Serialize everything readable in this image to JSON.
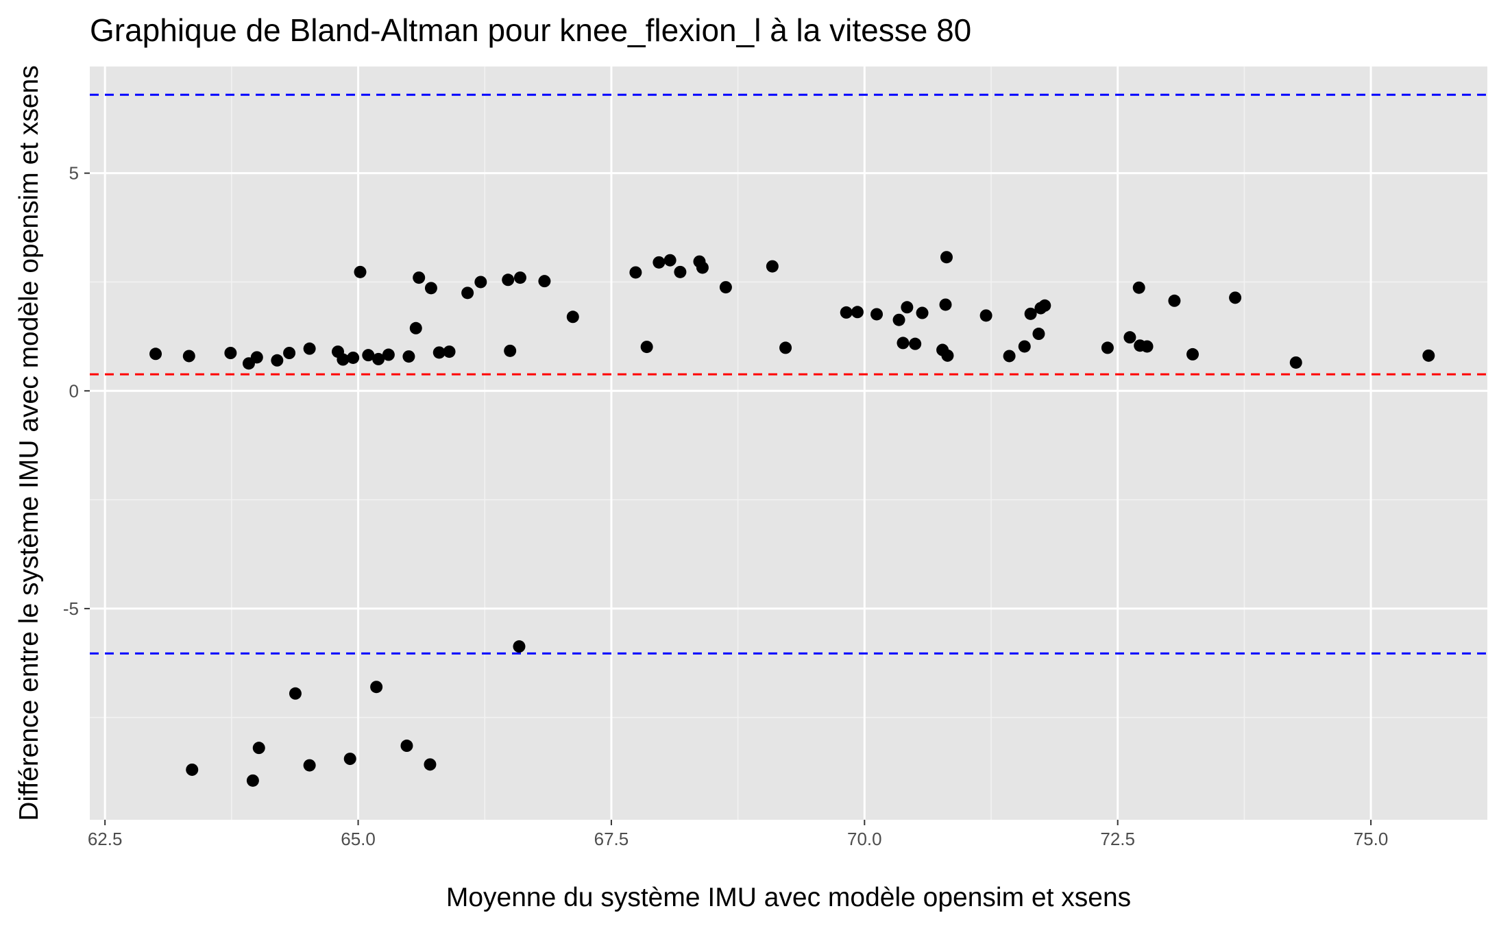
{
  "chart_data": {
    "type": "scatter",
    "title": "Graphique de Bland-Altman pour knee_flexion_l à la vitesse 80",
    "xlabel": "Moyenne du système IMU avec modèle opensim et xsens",
    "ylabel": "Différence entre le système IMU avec modèle opensim et xsens",
    "xlim": [
      62.35,
      76.15
    ],
    "ylim": [
      -9.85,
      7.45
    ],
    "x_ticks": [
      62.5,
      65.0,
      67.5,
      70.0,
      72.5,
      75.0
    ],
    "x_tick_labels": [
      "62.5",
      "65.0",
      "67.5",
      "70.0",
      "72.5",
      "75.0"
    ],
    "y_ticks": [
      -5,
      0,
      5
    ],
    "y_tick_labels": [
      "-5",
      "0",
      "5"
    ],
    "grid": true,
    "reference_lines": [
      {
        "y": 6.8,
        "color": "#0000ff",
        "style": "dashed"
      },
      {
        "y": 0.38,
        "color": "#ff0000",
        "style": "dashed"
      },
      {
        "y": -6.03,
        "color": "#0000ff",
        "style": "dashed"
      }
    ],
    "point_color": "#000000",
    "points": [
      {
        "x": 63.0,
        "y": 0.85
      },
      {
        "x": 63.33,
        "y": 0.8
      },
      {
        "x": 63.74,
        "y": 0.87
      },
      {
        "x": 63.92,
        "y": 0.63
      },
      {
        "x": 64.0,
        "y": 0.77
      },
      {
        "x": 64.2,
        "y": 0.7
      },
      {
        "x": 64.32,
        "y": 0.87
      },
      {
        "x": 64.52,
        "y": 0.97
      },
      {
        "x": 64.8,
        "y": 0.9
      },
      {
        "x": 64.85,
        "y": 0.72
      },
      {
        "x": 64.95,
        "y": 0.76
      },
      {
        "x": 65.02,
        "y": 2.73
      },
      {
        "x": 65.1,
        "y": 0.82
      },
      {
        "x": 65.2,
        "y": 0.73
      },
      {
        "x": 65.3,
        "y": 0.83
      },
      {
        "x": 65.5,
        "y": 0.79
      },
      {
        "x": 65.57,
        "y": 1.44
      },
      {
        "x": 65.6,
        "y": 2.6
      },
      {
        "x": 65.72,
        "y": 2.36
      },
      {
        "x": 65.8,
        "y": 0.88
      },
      {
        "x": 65.9,
        "y": 0.9
      },
      {
        "x": 66.08,
        "y": 2.25
      },
      {
        "x": 66.21,
        "y": 2.5
      },
      {
        "x": 66.48,
        "y": 2.55
      },
      {
        "x": 66.5,
        "y": 0.92
      },
      {
        "x": 66.6,
        "y": 2.6
      },
      {
        "x": 66.84,
        "y": 2.52
      },
      {
        "x": 67.12,
        "y": 1.7
      },
      {
        "x": 67.74,
        "y": 2.72
      },
      {
        "x": 67.85,
        "y": 1.01
      },
      {
        "x": 67.97,
        "y": 2.95
      },
      {
        "x": 68.08,
        "y": 3.0
      },
      {
        "x": 68.18,
        "y": 2.73
      },
      {
        "x": 68.37,
        "y": 2.97
      },
      {
        "x": 68.4,
        "y": 2.83
      },
      {
        "x": 68.63,
        "y": 2.38
      },
      {
        "x": 69.09,
        "y": 2.86
      },
      {
        "x": 69.22,
        "y": 0.99
      },
      {
        "x": 69.82,
        "y": 1.8
      },
      {
        "x": 69.93,
        "y": 1.81
      },
      {
        "x": 70.12,
        "y": 1.76
      },
      {
        "x": 70.34,
        "y": 1.63
      },
      {
        "x": 70.38,
        "y": 1.1
      },
      {
        "x": 70.42,
        "y": 1.92
      },
      {
        "x": 70.5,
        "y": 1.08
      },
      {
        "x": 70.57,
        "y": 1.79
      },
      {
        "x": 70.77,
        "y": 0.94
      },
      {
        "x": 70.8,
        "y": 1.98
      },
      {
        "x": 70.81,
        "y": 3.07
      },
      {
        "x": 70.82,
        "y": 0.81
      },
      {
        "x": 71.2,
        "y": 1.73
      },
      {
        "x": 71.43,
        "y": 0.8
      },
      {
        "x": 71.58,
        "y": 1.02
      },
      {
        "x": 71.64,
        "y": 1.77
      },
      {
        "x": 71.72,
        "y": 1.31
      },
      {
        "x": 71.74,
        "y": 1.9
      },
      {
        "x": 71.78,
        "y": 1.96
      },
      {
        "x": 72.4,
        "y": 0.99
      },
      {
        "x": 72.62,
        "y": 1.23
      },
      {
        "x": 72.71,
        "y": 2.37
      },
      {
        "x": 72.72,
        "y": 1.04
      },
      {
        "x": 72.79,
        "y": 1.02
      },
      {
        "x": 73.06,
        "y": 2.07
      },
      {
        "x": 73.24,
        "y": 0.84
      },
      {
        "x": 73.66,
        "y": 2.14
      },
      {
        "x": 74.26,
        "y": 0.65
      },
      {
        "x": 75.57,
        "y": 0.81
      },
      {
        "x": 63.36,
        "y": -8.7
      },
      {
        "x": 63.96,
        "y": -8.95
      },
      {
        "x": 64.02,
        "y": -8.2
      },
      {
        "x": 64.38,
        "y": -6.95
      },
      {
        "x": 64.52,
        "y": -8.6
      },
      {
        "x": 64.92,
        "y": -8.45
      },
      {
        "x": 65.18,
        "y": -6.8
      },
      {
        "x": 65.48,
        "y": -8.15
      },
      {
        "x": 65.71,
        "y": -8.58
      },
      {
        "x": 66.59,
        "y": -5.87
      }
    ]
  }
}
